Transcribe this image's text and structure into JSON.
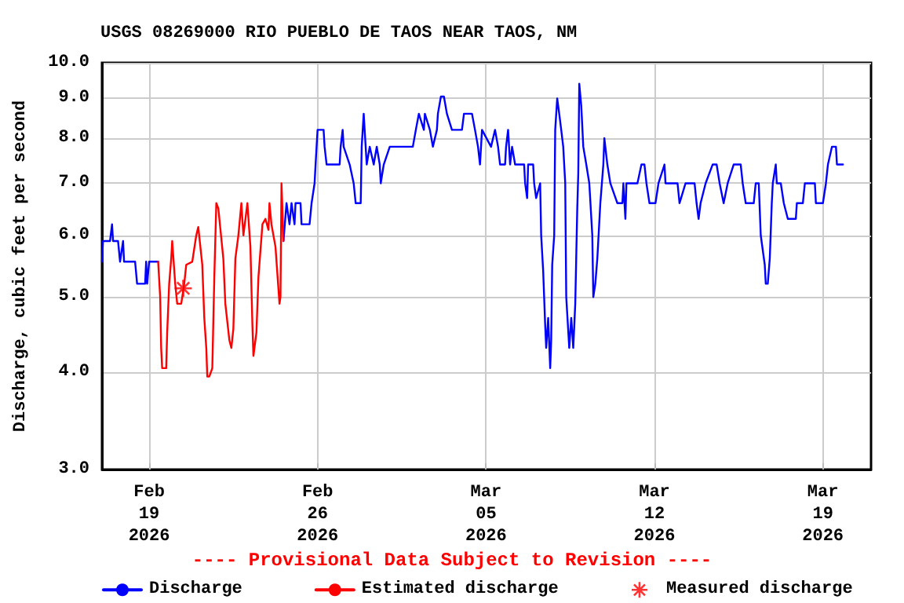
{
  "chart_data": {
    "type": "line",
    "title": "USGS 08269000 RIO PUEBLO DE TAOS NEAR TAOS, NM",
    "ylabel": "Discharge, cubic feet per second",
    "annotations": [
      "---- Provisional Data Subject to Revision ----"
    ],
    "log": "y",
    "grid": true,
    "legend": "bottom",
    "marker": "none",
    "line_style": "solid",
    "xlim": [
      "2026-02-17T01:00",
      "2026-03-21T00:00"
    ],
    "xticks": [
      {
        "value": "2026-02-19",
        "label": "Feb\n19\n2026"
      },
      {
        "value": "2026-02-26",
        "label": "Feb\n26\n2026"
      },
      {
        "value": "2026-03-05",
        "label": "Mar\n05\n2026"
      },
      {
        "value": "2026-03-12",
        "label": "Mar\n12\n2026"
      },
      {
        "value": "2026-03-19",
        "label": "Mar\n19\n2026"
      }
    ],
    "ylim": [
      3,
      10
    ],
    "yticks": [
      {
        "value": 3,
        "label": "3.0"
      },
      {
        "value": 4,
        "label": "4.0"
      },
      {
        "value": 5,
        "label": "5.0"
      },
      {
        "value": 6,
        "label": "6.0"
      },
      {
        "value": 7,
        "label": "7.0"
      },
      {
        "value": 8,
        "label": "8.0"
      },
      {
        "value": 9,
        "label": "9.0"
      },
      {
        "value": 10,
        "label": "10.0"
      }
    ],
    "series": [
      {
        "name": "Discharge",
        "color": "#0000ff",
        "x": [
          "2026-02-17T01:00",
          "2026-02-17T02:00",
          "2026-02-17T09:00",
          "2026-02-17T11:00",
          "2026-02-17T12:00",
          "2026-02-17T17:00",
          "2026-02-17T19:00",
          "2026-02-17T22:00",
          "2026-02-17T23:00",
          "2026-02-18T10:00",
          "2026-02-18T12:00",
          "2026-02-18T20:00",
          "2026-02-18T21:00",
          "2026-02-18T22:00",
          "2026-02-19T00:00",
          "2026-02-19T09:00",
          "2026-02-22T00:00",
          "2026-02-24T14:00",
          "2026-02-24T17:00",
          "2026-02-24T20:00",
          "2026-02-24T22:00",
          "2026-02-25T01:00",
          "2026-02-25T02:00",
          "2026-02-25T07:00",
          "2026-02-25T08:00",
          "2026-02-25T16:00",
          "2026-02-25T18:00",
          "2026-02-25T21:00",
          "2026-02-25T22:00",
          "2026-02-25T23:00",
          "2026-02-26T00:00",
          "2026-02-26T06:00",
          "2026-02-26T07:00",
          "2026-02-26T09:00",
          "2026-02-26T22:00",
          "2026-02-26T23:00",
          "2026-02-27T01:00",
          "2026-02-27T02:00",
          "2026-02-27T08:00",
          "2026-02-27T12:00",
          "2026-02-27T14:00",
          "2026-02-27T19:00",
          "2026-02-27T20:00",
          "2026-02-27T22:00",
          "2026-02-28T01:00",
          "2026-02-28T04:00",
          "2026-02-28T08:00",
          "2026-02-28T11:00",
          "2026-02-28T14:00",
          "2026-02-28T15:00",
          "2026-02-28T18:00",
          "2026-03-01T00:00",
          "2026-03-01T23:00",
          "2026-03-02T02:00",
          "2026-03-02T05:00",
          "2026-03-02T10:00",
          "2026-03-02T11:00",
          "2026-03-02T16:00",
          "2026-03-02T19:00",
          "2026-03-02T23:00",
          "2026-03-03T00:00",
          "2026-03-03T03:00",
          "2026-03-03T06:00",
          "2026-03-03T09:00",
          "2026-03-03T14:00",
          "2026-03-04T00:00",
          "2026-03-04T02:00",
          "2026-03-04T10:00",
          "2026-03-04T13:00",
          "2026-03-04T16:00",
          "2026-03-04T18:00",
          "2026-03-04T20:00",
          "2026-03-05T05:00",
          "2026-03-05T09:00",
          "2026-03-05T12:00",
          "2026-03-05T14:00",
          "2026-03-05T19:00",
          "2026-03-05T20:00",
          "2026-03-05T22:00",
          "2026-03-06T00:00",
          "2026-03-06T02:00",
          "2026-03-06T05:00",
          "2026-03-06T14:00",
          "2026-03-06T15:00",
          "2026-03-06T17:00",
          "2026-03-06T18:00",
          "2026-03-06T23:00",
          "2026-03-07T00:00",
          "2026-03-07T02:00",
          "2026-03-07T06:00",
          "2026-03-07T07:00",
          "2026-03-07T09:00",
          "2026-03-07T11:00",
          "2026-03-07T12:00",
          "2026-03-07T14:00",
          "2026-03-07T16:00",
          "2026-03-07T17:00",
          "2026-03-07T18:00",
          "2026-03-07T20:00",
          "2026-03-07T21:00",
          "2026-03-07T23:00",
          "2026-03-08T01:00",
          "2026-03-08T03:00",
          "2026-03-08T05:00",
          "2026-03-08T07:00",
          "2026-03-08T08:00",
          "2026-03-08T11:00",
          "2026-03-08T13:00",
          "2026-03-08T15:00",
          "2026-03-08T17:00",
          "2026-03-08T19:00",
          "2026-03-08T20:00",
          "2026-03-08T21:00",
          "2026-03-08T23:00",
          "2026-03-09T01:00",
          "2026-03-09T04:00",
          "2026-03-09T07:00",
          "2026-03-09T10:00",
          "2026-03-09T11:00",
          "2026-03-09T13:00",
          "2026-03-09T15:00",
          "2026-03-09T18:00",
          "2026-03-09T21:00",
          "2026-03-09T22:00",
          "2026-03-10T01:00",
          "2026-03-10T04:00",
          "2026-03-10T11:00",
          "2026-03-10T16:00",
          "2026-03-10T17:00",
          "2026-03-10T19:00",
          "2026-03-10T20:00",
          "2026-03-11T07:00",
          "2026-03-11T11:00",
          "2026-03-11T14:00",
          "2026-03-11T16:00",
          "2026-03-11T19:00",
          "2026-03-12T01:00",
          "2026-03-12T04:00",
          "2026-03-12T10:00",
          "2026-03-12T11:00",
          "2026-03-12T23:00",
          "2026-03-13T01:00",
          "2026-03-13T07:00",
          "2026-03-13T16:00",
          "2026-03-13T18:00",
          "2026-03-13T20:00",
          "2026-03-13T22:00",
          "2026-03-14T03:00",
          "2026-03-14T10:00",
          "2026-03-14T14:00",
          "2026-03-14T17:00",
          "2026-03-14T21:00",
          "2026-03-15T01:00",
          "2026-03-15T07:00",
          "2026-03-15T14:00",
          "2026-03-15T16:00",
          "2026-03-15T19:00",
          "2026-03-16T03:00",
          "2026-03-16T05:00",
          "2026-03-16T08:00",
          "2026-03-16T10:00",
          "2026-03-16T14:00",
          "2026-03-16T15:00",
          "2026-03-16T17:00",
          "2026-03-16T19:00",
          "2026-03-16T21:00",
          "2026-03-16T22:00",
          "2026-03-17T01:00",
          "2026-03-17T02:00",
          "2026-03-17T06:00",
          "2026-03-17T09:00",
          "2026-03-17T13:00",
          "2026-03-17T21:00",
          "2026-03-17T22:00",
          "2026-03-18T04:00",
          "2026-03-18T06:00",
          "2026-03-18T16:00",
          "2026-03-18T17:00",
          "2026-03-19T00:00",
          "2026-03-19T03:00",
          "2026-03-19T05:00",
          "2026-03-19T09:00",
          "2026-03-19T13:00",
          "2026-03-19T14:00",
          "2026-03-19T20:00"
        ],
        "values": [
          5.55,
          5.9,
          5.9,
          6.2,
          5.9,
          5.9,
          5.55,
          5.9,
          5.55,
          5.55,
          5.2,
          5.2,
          5.55,
          5.2,
          5.55,
          5.55,
          null,
          5.9,
          6.6,
          6.2,
          6.6,
          6.2,
          6.6,
          6.6,
          6.2,
          6.2,
          6.6,
          7.0,
          7.4,
          7.8,
          8.2,
          8.2,
          7.8,
          7.4,
          7.4,
          7.8,
          8.2,
          7.8,
          7.4,
          7.0,
          6.6,
          6.6,
          7.8,
          8.6,
          7.4,
          7.8,
          7.4,
          7.8,
          7.4,
          7.0,
          7.4,
          7.8,
          7.8,
          8.2,
          8.6,
          8.2,
          8.6,
          8.2,
          7.8,
          8.2,
          8.6,
          9.05,
          9.05,
          8.6,
          8.2,
          8.2,
          8.6,
          8.6,
          8.2,
          7.8,
          7.4,
          8.2,
          7.8,
          8.2,
          7.8,
          7.4,
          7.4,
          7.8,
          8.2,
          7.4,
          7.8,
          7.4,
          7.4,
          7.0,
          6.7,
          7.4,
          7.4,
          7.0,
          6.7,
          7.0,
          6.0,
          5.4,
          4.6,
          4.3,
          4.7,
          4.05,
          4.4,
          5.5,
          6.0,
          8.2,
          9.0,
          8.6,
          8.2,
          7.8,
          7.0,
          5.0,
          4.3,
          4.7,
          4.3,
          4.9,
          6.5,
          7.2,
          9.4,
          8.8,
          7.8,
          7.4,
          7.0,
          6.0,
          5.0,
          5.2,
          5.6,
          6.6,
          7.4,
          8.0,
          7.4,
          7.0,
          6.6,
          6.6,
          7.0,
          6.3,
          7.0,
          7.0,
          7.4,
          7.4,
          7.0,
          6.6,
          6.6,
          7.0,
          7.4,
          7.0,
          7.0,
          6.6,
          7.0,
          7.0,
          6.6,
          6.3,
          6.6,
          7.0,
          7.4,
          7.4,
          7.0,
          6.6,
          7.0,
          7.4,
          7.4,
          7.0,
          6.6,
          6.6,
          7.0,
          7.0,
          6.0,
          5.5,
          5.2,
          5.2,
          5.6,
          6.6,
          7.0,
          7.4,
          7.0,
          7.0,
          6.6,
          6.3,
          6.3,
          6.6,
          6.6,
          7.0,
          7.0,
          6.6,
          6.6,
          7.0,
          7.4,
          7.8,
          7.8,
          7.4,
          7.4
        ]
      },
      {
        "name": "Estimated discharge",
        "color": "#ff0000",
        "x": [
          "2026-02-19T09:00",
          "2026-02-19T11:00",
          "2026-02-19T12:00",
          "2026-02-19T13:00",
          "2026-02-19T17:00",
          "2026-02-19T18:00",
          "2026-02-19T20:00",
          "2026-02-19T22:00",
          "2026-02-19T23:00",
          "2026-02-20T02:00",
          "2026-02-20T04:00",
          "2026-02-20T08:00",
          "2026-02-20T11:00",
          "2026-02-20T13:00",
          "2026-02-20T19:00",
          "2026-02-20T23:00",
          "2026-02-21T01:00",
          "2026-02-21T05:00",
          "2026-02-21T07:00",
          "2026-02-21T09:00",
          "2026-02-21T10:00",
          "2026-02-21T12:00",
          "2026-02-21T15:00",
          "2026-02-21T17:00",
          "2026-02-21T19:00",
          "2026-02-21T21:00",
          "2026-02-22T02:00",
          "2026-02-22T04:00",
          "2026-02-22T08:00",
          "2026-02-22T10:00",
          "2026-02-22T12:00",
          "2026-02-22T14:00",
          "2026-02-22T17:00",
          "2026-02-22T20:00",
          "2026-02-22T22:00",
          "2026-02-23T02:00",
          "2026-02-23T05:00",
          "2026-02-23T07:00",
          "2026-02-23T08:00",
          "2026-02-23T11:00",
          "2026-02-23T13:00",
          "2026-02-23T17:00",
          "2026-02-23T20:00",
          "2026-02-23T23:00",
          "2026-02-24T00:00",
          "2026-02-24T02:00",
          "2026-02-24T06:00",
          "2026-02-24T10:00",
          "2026-02-24T11:00",
          "2026-02-24T12:00",
          "2026-02-24T14:00"
        ],
        "values": [
          5.55,
          5.0,
          4.3,
          4.05,
          4.05,
          4.5,
          5.2,
          5.6,
          5.9,
          5.2,
          4.9,
          4.9,
          5.2,
          5.5,
          5.55,
          6.0,
          6.15,
          5.5,
          4.7,
          4.3,
          3.95,
          3.95,
          4.05,
          5.3,
          6.6,
          6.5,
          5.6,
          4.9,
          4.4,
          4.3,
          4.55,
          5.6,
          6.0,
          6.6,
          6.0,
          6.6,
          5.8,
          4.6,
          4.2,
          4.5,
          5.3,
          6.2,
          6.3,
          6.1,
          6.6,
          6.2,
          5.8,
          4.9,
          5.0,
          7.0,
          5.9
        ]
      },
      {
        "name": "Measured discharge",
        "type": "scatter",
        "marker": "cross",
        "color": "#ff0000",
        "x": [
          "2026-02-20T10:00"
        ],
        "values": [
          5.13
        ]
      }
    ]
  }
}
